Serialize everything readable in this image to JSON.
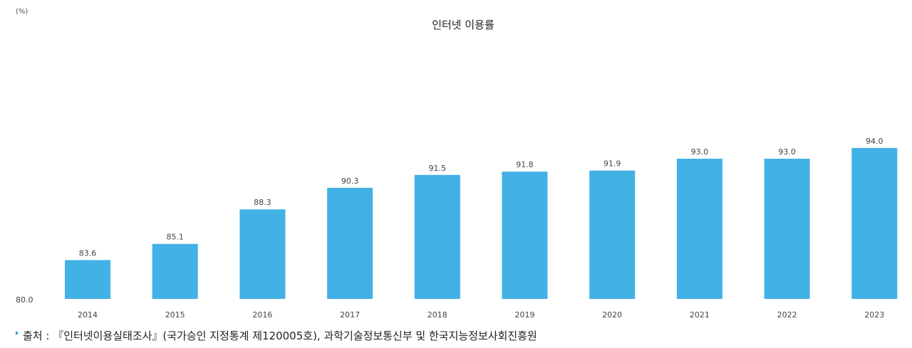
{
  "chart_data": {
    "type": "bar",
    "title": "인터넷 이용률",
    "unit": "(%)",
    "categories": [
      "2014",
      "2015",
      "2016",
      "2017",
      "2018",
      "2019",
      "2020",
      "2021",
      "2022",
      "2023"
    ],
    "values": [
      83.6,
      85.1,
      88.3,
      90.3,
      91.5,
      91.8,
      91.9,
      93.0,
      93.0,
      94.0
    ],
    "value_labels": [
      "83.6",
      "85.1",
      "88.3",
      "90.3",
      "91.5",
      "91.8",
      "91.9",
      "93.0",
      "93.0",
      "94.0"
    ],
    "ylim": [
      80.0,
      96.5
    ],
    "y_ticks": [
      "80.0"
    ],
    "bar_color": "#41b1e6",
    "grid": false
  },
  "source": {
    "label": "출처 :",
    "text": "『인터넷이용실태조사』(국가승인 지정통계 제120005호), 과학기술정보통신부 및 한국지능정보사회진흥원"
  }
}
